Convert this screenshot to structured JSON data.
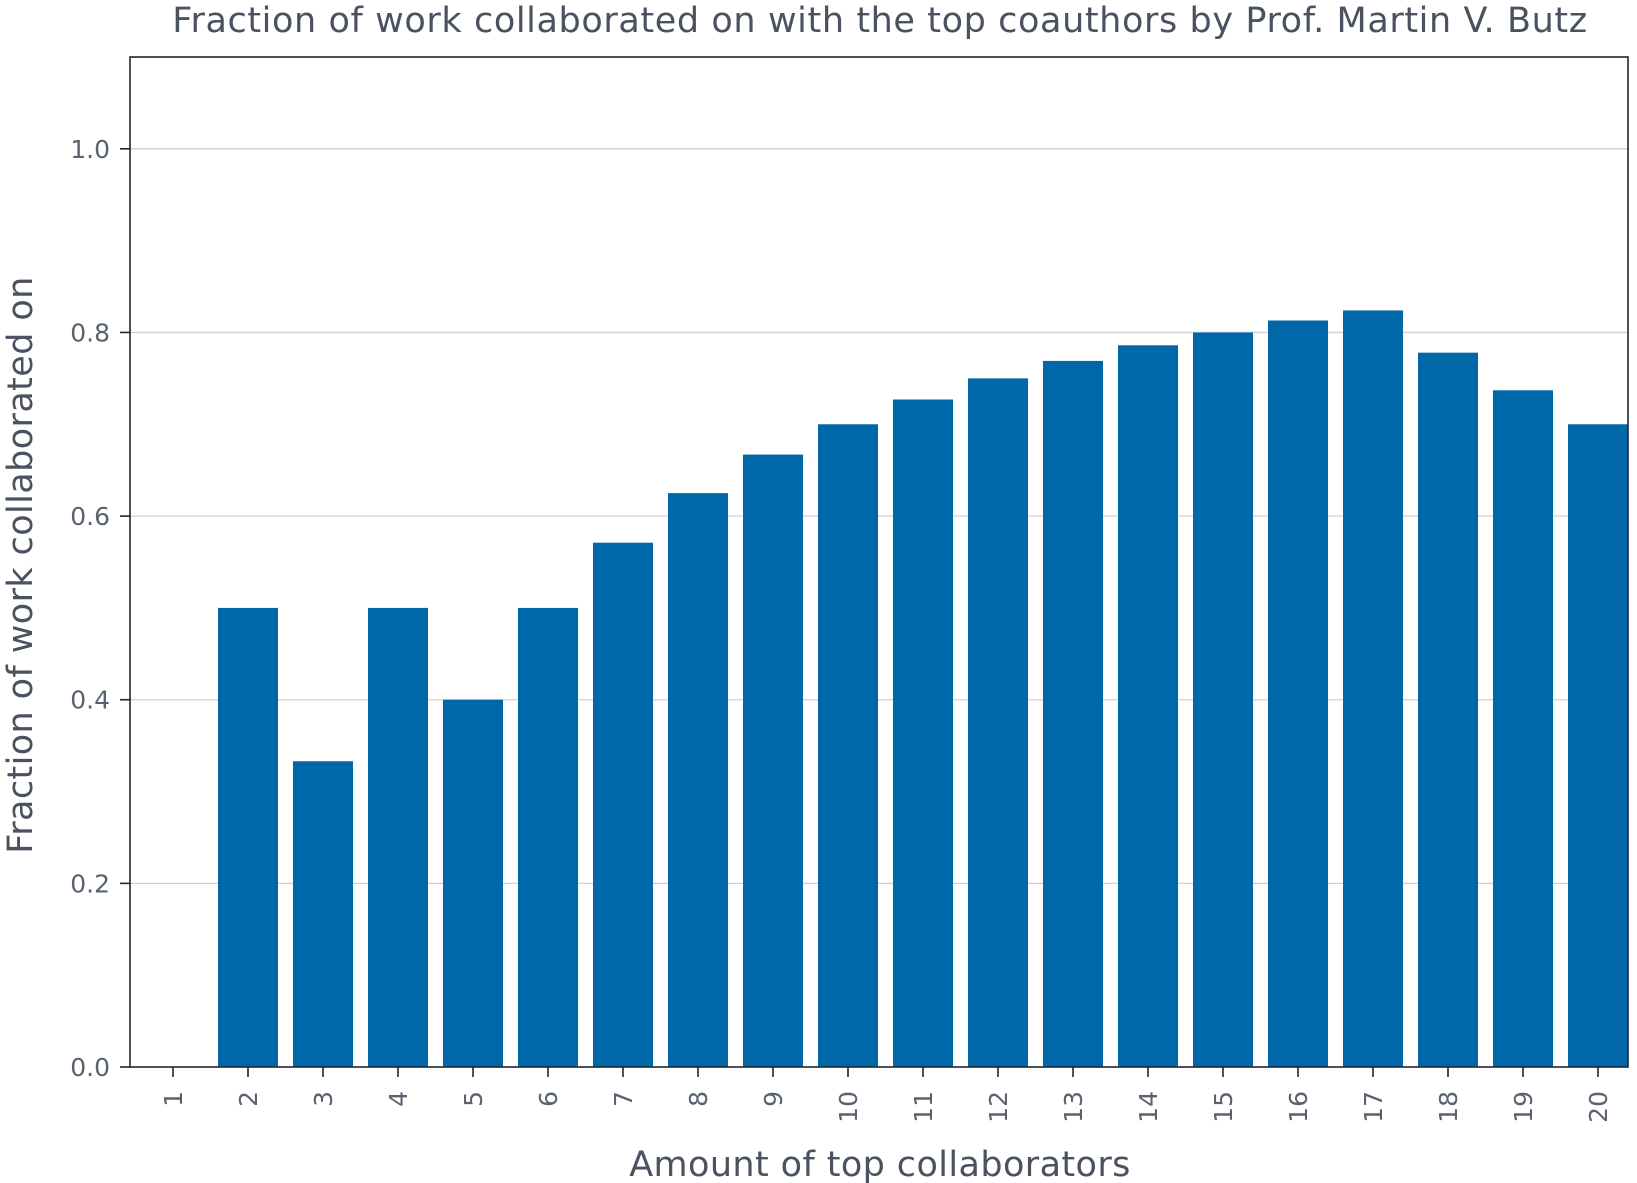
{
  "chart_data": {
    "type": "bar",
    "title": "Fraction of work collaborated on with the top coauthors by Prof. Martin V. Butz",
    "xlabel": "Amount of top collaborators",
    "ylabel": "Fraction of work collaborated on",
    "categories": [
      "1",
      "2",
      "3",
      "4",
      "5",
      "6",
      "7",
      "8",
      "9",
      "10",
      "11",
      "12",
      "13",
      "14",
      "15",
      "16",
      "17",
      "18",
      "19",
      "20"
    ],
    "values": [
      0.0,
      0.5,
      0.333,
      0.5,
      0.4,
      0.5,
      0.571,
      0.625,
      0.667,
      0.7,
      0.727,
      0.75,
      0.769,
      0.786,
      0.8,
      0.813,
      0.824,
      0.778,
      0.737,
      0.7
    ],
    "ylim": [
      0,
      1.1
    ],
    "yticks": [
      "0.0",
      "0.2",
      "0.4",
      "0.6",
      "0.8",
      "1.0"
    ],
    "grid": "horizontal",
    "colors": {
      "bar": "#0068a8"
    }
  }
}
